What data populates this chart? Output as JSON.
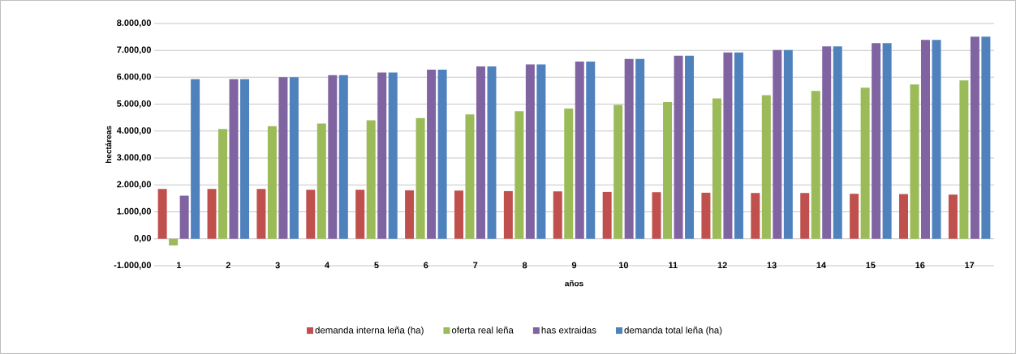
{
  "chart_data": {
    "type": "bar",
    "xlabel": "años",
    "ylabel": "hectáreas",
    "categories": [
      "1",
      "2",
      "3",
      "4",
      "5",
      "6",
      "7",
      "8",
      "9",
      "10",
      "11",
      "12",
      "13",
      "14",
      "15",
      "16",
      "17"
    ],
    "series": [
      {
        "name": "demanda interna leña (ha)",
        "color": "#c0504d",
        "values": [
          1850,
          1850,
          1850,
          1820,
          1820,
          1800,
          1790,
          1770,
          1760,
          1740,
          1730,
          1710,
          1700,
          1700,
          1670,
          1660,
          1640
        ]
      },
      {
        "name": "oferta real leña",
        "color": "#9bbb59",
        "values": [
          -250,
          4080,
          4180,
          4280,
          4400,
          4480,
          4620,
          4740,
          4840,
          4970,
          5080,
          5210,
          5330,
          5490,
          5610,
          5730,
          5880
        ]
      },
      {
        "name": "has extraidas",
        "color": "#8064a2",
        "values": [
          1600,
          5930,
          6000,
          6080,
          6180,
          6280,
          6400,
          6480,
          6580,
          6680,
          6800,
          6920,
          7010,
          7150,
          7270,
          7390,
          7510
        ]
      },
      {
        "name": "demanda total leña (ha)",
        "color": "#4f81bd",
        "values": [
          5930,
          5930,
          6000,
          6080,
          6180,
          6280,
          6400,
          6480,
          6580,
          6680,
          6800,
          6920,
          7010,
          7150,
          7270,
          7390,
          7510
        ]
      }
    ],
    "ylim": [
      -1000,
      8000
    ],
    "yticks": [
      {
        "value": -1000,
        "label": "-1.000,00"
      },
      {
        "value": 0,
        "label": "0,00"
      },
      {
        "value": 1000,
        "label": "1.000,00"
      },
      {
        "value": 2000,
        "label": "2.000,00"
      },
      {
        "value": 3000,
        "label": "3.000,00"
      },
      {
        "value": 4000,
        "label": "4.000,00"
      },
      {
        "value": 5000,
        "label": "5.000,00"
      },
      {
        "value": 6000,
        "label": "6.000,00"
      },
      {
        "value": 7000,
        "label": "7.000,00"
      },
      {
        "value": 8000,
        "label": "8.000,00"
      }
    ],
    "grid": "y",
    "legend": "bottom"
  }
}
